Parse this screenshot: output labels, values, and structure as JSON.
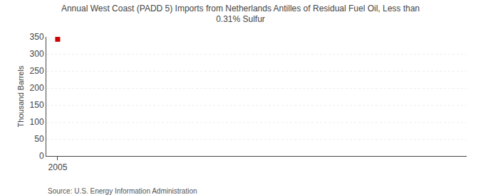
{
  "chart_data": {
    "type": "scatter",
    "title": "Annual West Coast (PADD 5) Imports from Netherlands Antilles of Residual Fuel Oil, Less than\n0.31% Sulfur",
    "ylabel": "Thousand Barrels",
    "annotations": [
      "Source: U.S. Energy Information Administration"
    ],
    "x": [
      2005
    ],
    "values": [
      343
    ],
    "color": "#cc0000",
    "marker": "square",
    "xlim": [
      2004.5,
      2023
    ],
    "xticks": [
      2005
    ],
    "ylim": [
      0,
      350
    ],
    "yticks": [
      0,
      50,
      100,
      150,
      200,
      250,
      300,
      350
    ],
    "grid": true
  }
}
